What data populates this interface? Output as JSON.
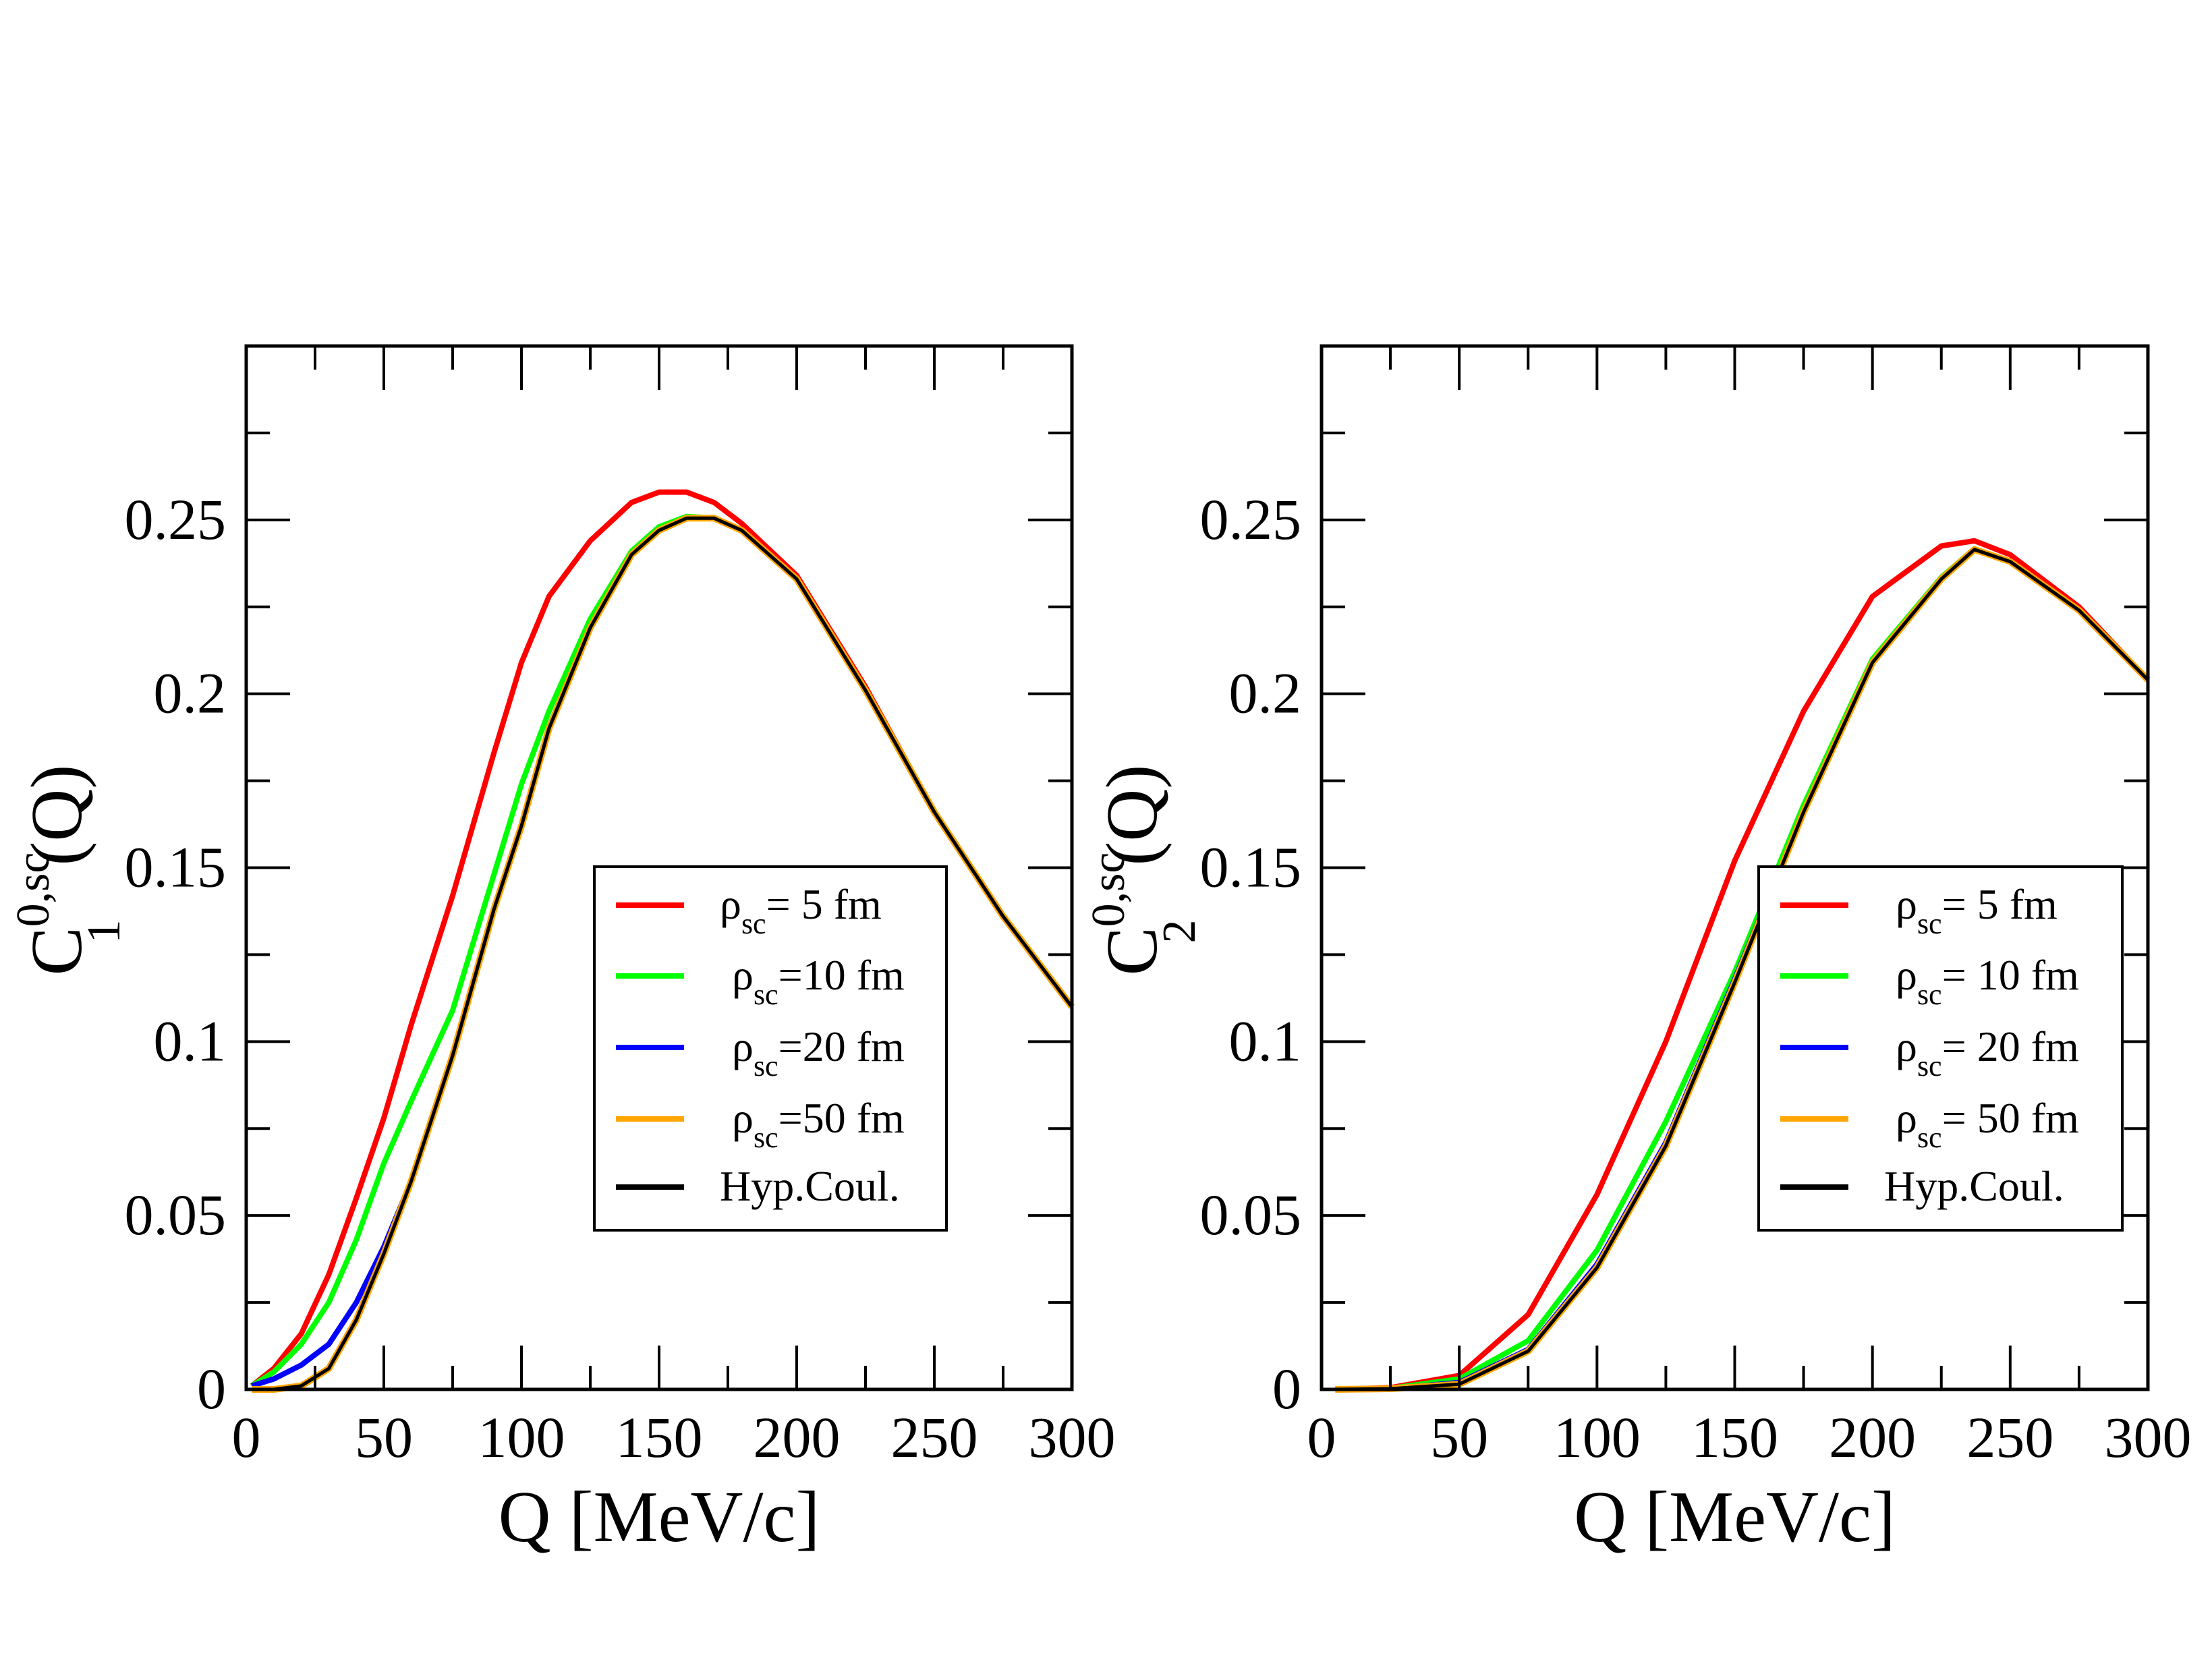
{
  "chart_data": [
    {
      "type": "line",
      "xlabel": "Q [MeV/c]",
      "ylabel": {
        "main": "C",
        "sup": "0,sc",
        "sub": "1",
        "tail": "(Q)"
      },
      "xlim": [
        0,
        300
      ],
      "ylim": [
        0,
        0.3
      ],
      "xticks": [
        0,
        50,
        100,
        150,
        200,
        250,
        300
      ],
      "xtick_labels": [
        "0",
        "50",
        "100",
        "150",
        "200",
        "250",
        "300"
      ],
      "yticks": [
        0,
        0.05,
        0.1,
        0.15,
        0.2,
        0.25
      ],
      "ytick_labels": [
        "0",
        "0.05",
        "0.1",
        "0.15",
        "0.2",
        "0.25"
      ],
      "grid": false,
      "legend_placement": "center-right",
      "series": [
        {
          "key": "rho5",
          "legend": {
            "symbol": "ρ",
            "sub": "sc",
            "rest": "= 5 fm"
          },
          "color": "#ff0000",
          "x": [
            2,
            10,
            20,
            30,
            40,
            50,
            60,
            75,
            90,
            100,
            110,
            125,
            140,
            150,
            160,
            170,
            180,
            200,
            225,
            250,
            275,
            300
          ],
          "y": [
            0.001,
            0.006,
            0.016,
            0.033,
            0.055,
            0.078,
            0.105,
            0.142,
            0.183,
            0.209,
            0.228,
            0.244,
            0.255,
            0.258,
            0.258,
            0.255,
            0.249,
            0.234,
            0.202,
            0.166,
            0.136,
            0.11
          ]
        },
        {
          "key": "rho10",
          "legend": {
            "symbol": "ρ",
            "sub": "sc",
            "rest": "=10 fm"
          },
          "color": "#00ff00",
          "x": [
            2,
            10,
            20,
            30,
            40,
            50,
            60,
            75,
            90,
            100,
            110,
            125,
            140,
            150,
            160,
            170,
            180,
            200,
            225,
            250,
            275,
            300
          ],
          "y": [
            0.001,
            0.005,
            0.013,
            0.025,
            0.043,
            0.065,
            0.083,
            0.109,
            0.148,
            0.174,
            0.195,
            0.2215,
            0.241,
            0.248,
            0.251,
            0.2505,
            0.247,
            0.233,
            0.201,
            0.166,
            0.136,
            0.11
          ]
        },
        {
          "key": "rho20",
          "legend": {
            "symbol": "ρ",
            "sub": "sc",
            "rest": "=20 fm"
          },
          "color": "#0000ff",
          "x": [
            2,
            10,
            20,
            30,
            40,
            50,
            60,
            75,
            90,
            100,
            110,
            125,
            140,
            150,
            160,
            170,
            180,
            200,
            225,
            250,
            275,
            300
          ],
          "y": [
            0.001,
            0.003,
            0.007,
            0.013,
            0.025,
            0.041,
            0.06,
            0.096,
            0.138,
            0.162,
            0.19,
            0.219,
            0.24,
            0.247,
            0.2505,
            0.2505,
            0.247,
            0.233,
            0.201,
            0.166,
            0.136,
            0.11
          ]
        },
        {
          "key": "rho50",
          "legend": {
            "symbol": "ρ",
            "sub": "sc",
            "rest": "=50 fm"
          },
          "color": "#ffa500",
          "x": [
            2,
            10,
            20,
            30,
            40,
            50,
            60,
            75,
            90,
            100,
            110,
            125,
            140,
            150,
            160,
            170,
            180,
            200,
            225,
            250,
            275,
            300
          ],
          "y": [
            0.0,
            0.0,
            0.001,
            0.006,
            0.02,
            0.039,
            0.06,
            0.096,
            0.138,
            0.162,
            0.19,
            0.219,
            0.24,
            0.247,
            0.2505,
            0.2505,
            0.247,
            0.233,
            0.201,
            0.166,
            0.136,
            0.11
          ]
        },
        {
          "key": "hyp",
          "legend": {
            "symbol": "",
            "sub": "",
            "rest": "Hyp.Coul."
          },
          "color": "#000000",
          "x": [
            2,
            10,
            20,
            30,
            40,
            50,
            60,
            75,
            90,
            100,
            110,
            125,
            140,
            150,
            160,
            170,
            180,
            200,
            225,
            250,
            275,
            300
          ],
          "y": [
            0.0,
            0.0,
            0.001,
            0.006,
            0.02,
            0.039,
            0.06,
            0.096,
            0.138,
            0.162,
            0.19,
            0.219,
            0.24,
            0.247,
            0.2505,
            0.2505,
            0.247,
            0.233,
            0.201,
            0.166,
            0.136,
            0.11
          ]
        }
      ]
    },
    {
      "type": "line",
      "xlabel": "Q [MeV/c]",
      "ylabel": {
        "main": "C",
        "sup": "0,sc",
        "sub": "2",
        "tail": "(Q)"
      },
      "xlim": [
        0,
        300
      ],
      "ylim": [
        0,
        0.3
      ],
      "xticks": [
        0,
        50,
        100,
        150,
        200,
        250,
        300
      ],
      "xtick_labels": [
        "0",
        "50",
        "100",
        "150",
        "200",
        "250",
        "300"
      ],
      "yticks": [
        0,
        0.05,
        0.1,
        0.15,
        0.2,
        0.25
      ],
      "ytick_labels": [
        "0",
        "0.05",
        "0.1",
        "0.15",
        "0.2",
        "0.25"
      ],
      "grid": false,
      "legend_placement": "center-right",
      "series": [
        {
          "key": "rho5",
          "legend": {
            "symbol": "ρ",
            "sub": "sc",
            "rest": "= 5 fm"
          },
          "color": "#ff0000",
          "x": [
            5,
            25,
            50,
            75,
            100,
            125,
            150,
            175,
            200,
            225,
            237,
            250,
            275,
            300
          ],
          "y": [
            0,
            0.0005,
            0.004,
            0.0215,
            0.056,
            0.1,
            0.152,
            0.195,
            0.228,
            0.2425,
            0.244,
            0.24,
            0.225,
            0.204
          ]
        },
        {
          "key": "rho10",
          "legend": {
            "symbol": "ρ",
            "sub": "sc",
            "rest": "= 10 fm"
          },
          "color": "#00ff00",
          "x": [
            5,
            25,
            50,
            75,
            100,
            125,
            150,
            175,
            200,
            225,
            237,
            250,
            275,
            300
          ],
          "y": [
            0,
            0.0003,
            0.003,
            0.014,
            0.04,
            0.077,
            0.12,
            0.168,
            0.21,
            0.2335,
            0.2417,
            0.238,
            0.224,
            0.204
          ]
        },
        {
          "key": "rho20",
          "legend": {
            "symbol": "ρ",
            "sub": "sc",
            "rest": "= 20 fm"
          },
          "color": "#0000ff",
          "x": [
            5,
            25,
            50,
            75,
            100,
            125,
            150,
            175,
            200,
            225,
            237,
            250,
            275,
            300
          ],
          "y": [
            0,
            0.0002,
            0.002,
            0.0115,
            0.036,
            0.071,
            0.118,
            0.166,
            0.209,
            0.233,
            0.2415,
            0.238,
            0.224,
            0.204
          ]
        },
        {
          "key": "rho50",
          "legend": {
            "symbol": "ρ",
            "sub": "sc",
            "rest": "= 50 fm"
          },
          "color": "#ffa500",
          "x": [
            5,
            25,
            50,
            75,
            100,
            125,
            150,
            175,
            200,
            225,
            237,
            250,
            275,
            300
          ],
          "y": [
            0,
            0.0002,
            0.0015,
            0.011,
            0.035,
            0.07,
            0.117,
            0.166,
            0.209,
            0.233,
            0.2415,
            0.238,
            0.224,
            0.204
          ]
        },
        {
          "key": "hyp",
          "legend": {
            "symbol": "",
            "sub": "",
            "rest": "Hyp.Coul."
          },
          "color": "#000000",
          "x": [
            5,
            25,
            50,
            75,
            100,
            125,
            150,
            175,
            200,
            225,
            237,
            250,
            275,
            300
          ],
          "y": [
            0,
            0.0002,
            0.0015,
            0.011,
            0.035,
            0.07,
            0.117,
            0.166,
            0.209,
            0.233,
            0.2415,
            0.238,
            0.224,
            0.204
          ]
        }
      ]
    }
  ]
}
